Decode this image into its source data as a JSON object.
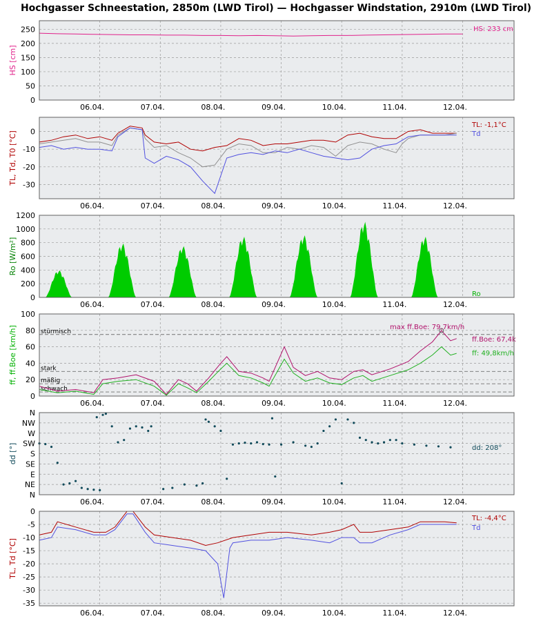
{
  "title": "Hochgasser Schneestation, 2850m (LWD Tirol) — Hochgasser Windstation, 2910m (LWD Tirol)",
  "chart_data": [
    {
      "type": "line",
      "ylabel": "HS [cm]",
      "ylim": [
        0,
        280
      ],
      "yticks": [
        0,
        50,
        100,
        150,
        200,
        250
      ],
      "xticks": [
        "06.04.",
        "07.04.",
        "08.04.",
        "09.04.",
        "10.04.",
        "11.04.",
        "12.04."
      ],
      "grid": true,
      "series": [
        {
          "name": "HS",
          "color": "#e0208a",
          "x": [
            0,
            0.3,
            0.6,
            0.9,
            1.2,
            1.5,
            1.8,
            2.1,
            2.4,
            2.7,
            3.0,
            3.3,
            3.6,
            3.9,
            4.2,
            4.5,
            4.8,
            5.1,
            5.4,
            5.7,
            6.0,
            6.3,
            6.7,
            7.0
          ],
          "y": [
            236,
            234,
            233,
            232,
            231,
            230,
            230,
            229,
            229,
            228,
            228,
            227,
            228,
            227,
            226,
            227,
            228,
            228,
            229,
            230,
            231,
            232,
            233,
            233
          ]
        }
      ],
      "annotations": [
        {
          "text": "HS: 233 cm",
          "color": "#e0208a"
        }
      ]
    },
    {
      "type": "line",
      "ylabel": "TL, Td, T0 [°C]",
      "ylim": [
        -38,
        8
      ],
      "yticks": [
        -30,
        -20,
        -10,
        0
      ],
      "xticks": [
        "06.04.",
        "07.04.",
        "08.04.",
        "09.04.",
        "10.04.",
        "11.04.",
        "12.04."
      ],
      "grid": true,
      "series": [
        {
          "name": "TL",
          "color": "#b00000",
          "x": [
            0,
            0.2,
            0.4,
            0.6,
            0.8,
            1.0,
            1.2,
            1.3,
            1.5,
            1.7,
            1.75,
            1.9,
            2.1,
            2.3,
            2.5,
            2.7,
            2.9,
            3.1,
            3.3,
            3.5,
            3.7,
            3.9,
            4.1,
            4.3,
            4.5,
            4.7,
            4.9,
            5.1,
            5.3,
            5.5,
            5.7,
            5.9,
            6.0,
            6.1,
            6.3,
            6.5,
            6.7,
            6.9
          ],
          "y": [
            -6,
            -5,
            -3,
            -2,
            -4,
            -3,
            -5,
            -1,
            3,
            2,
            -2,
            -6,
            -7,
            -6,
            -10,
            -11,
            -9,
            -8,
            -4,
            -5,
            -8,
            -7,
            -7,
            -6,
            -5,
            -5,
            -6,
            -2,
            -1,
            -3,
            -4,
            -4,
            -2,
            0,
            1,
            -1,
            -1,
            -1
          ]
        },
        {
          "name": "T0",
          "color": "#909090",
          "x": [
            0,
            0.2,
            0.4,
            0.6,
            0.8,
            1.0,
            1.2,
            1.3,
            1.5,
            1.7,
            1.75,
            1.9,
            2.1,
            2.3,
            2.5,
            2.7,
            2.9,
            3.1,
            3.3,
            3.5,
            3.7,
            3.9,
            4.1,
            4.3,
            4.5,
            4.7,
            4.9,
            5.1,
            5.3,
            5.5,
            5.7,
            5.9,
            6.0,
            6.1,
            6.3,
            6.5,
            6.7,
            6.9
          ],
          "y": [
            -7,
            -6,
            -5,
            -4,
            -6,
            -6,
            -8,
            -2,
            2,
            1,
            -4,
            -9,
            -8,
            -12,
            -15,
            -20,
            -19,
            -10,
            -7,
            -8,
            -12,
            -12,
            -9,
            -10,
            -8,
            -9,
            -14,
            -8,
            -6,
            -7,
            -10,
            -12,
            -7,
            -4,
            -2,
            -2,
            -2,
            -1
          ]
        },
        {
          "name": "Td",
          "color": "#5050e0",
          "x": [
            0,
            0.2,
            0.4,
            0.6,
            0.8,
            1.0,
            1.2,
            1.3,
            1.5,
            1.7,
            1.75,
            1.9,
            2.1,
            2.3,
            2.5,
            2.7,
            2.9,
            3.1,
            3.3,
            3.5,
            3.7,
            3.9,
            4.1,
            4.3,
            4.5,
            4.7,
            4.9,
            5.1,
            5.3,
            5.5,
            5.7,
            5.9,
            6.0,
            6.1,
            6.3,
            6.5,
            6.7,
            6.9
          ],
          "y": [
            -9,
            -8,
            -10,
            -9,
            -10,
            -10,
            -11,
            -3,
            2,
            1,
            -15,
            -18,
            -14,
            -16,
            -20,
            -28,
            -35,
            -15,
            -13,
            -12,
            -13,
            -11,
            -12,
            -10,
            -12,
            -14,
            -15,
            -16,
            -15,
            -10,
            -8,
            -7,
            -5,
            -3,
            -2,
            -2,
            -2,
            -2
          ]
        }
      ],
      "annotations": [
        {
          "text": "TL: -1,1°C",
          "color": "#b00000"
        },
        {
          "text": "Td",
          "color": "#5050e0"
        }
      ]
    },
    {
      "type": "area",
      "ylabel": "Ro [W/m²]",
      "ylim": [
        0,
        1200
      ],
      "yticks": [
        0,
        200,
        400,
        600,
        800,
        1000,
        1200
      ],
      "xticks": [
        "06.04.",
        "07.04.",
        "08.04.",
        "09.04.",
        "10.04.",
        "11.04.",
        "12.04."
      ],
      "grid": true,
      "series": [
        {
          "name": "Ro",
          "color": "#00cc00",
          "peaks": [
            {
              "center": 0.32,
              "half_width": 0.22,
              "value": 400
            },
            {
              "center": 1.37,
              "half_width": 0.23,
              "value": 800
            },
            {
              "center": 2.37,
              "half_width": 0.23,
              "value": 760
            },
            {
              "center": 3.37,
              "half_width": 0.23,
              "value": 900
            },
            {
              "center": 4.37,
              "half_width": 0.23,
              "value": 920
            },
            {
              "center": 5.37,
              "half_width": 0.23,
              "value": 1120
            },
            {
              "center": 6.37,
              "half_width": 0.22,
              "value": 900
            }
          ]
        }
      ],
      "annotations": [
        {
          "text": "Ro",
          "color": "#00b000"
        }
      ]
    },
    {
      "type": "line",
      "ylabel": "ff, ff.Boe [km/h]",
      "ylim": [
        0,
        100
      ],
      "yticks": [
        0,
        20,
        40,
        60,
        80,
        100
      ],
      "xticks": [
        "06.04.",
        "07.04.",
        "08.04.",
        "09.04.",
        "10.04.",
        "11.04.",
        "12.04."
      ],
      "grid": true,
      "thresholds": [
        {
          "label": "stürmisch",
          "value": 75
        },
        {
          "label": "stark",
          "value": 30
        },
        {
          "label": "mäßig",
          "value": 15
        },
        {
          "label": "schwach",
          "value": 5
        }
      ],
      "series": [
        {
          "name": "ff.Boe",
          "color": "#b0106a",
          "x": [
            0,
            0.3,
            0.6,
            0.9,
            1.05,
            1.3,
            1.6,
            1.9,
            2.1,
            2.3,
            2.45,
            2.6,
            2.8,
            3.0,
            3.1,
            3.3,
            3.5,
            3.7,
            3.8,
            4.05,
            4.2,
            4.4,
            4.6,
            4.8,
            5.0,
            5.2,
            5.35,
            5.5,
            5.8,
            6.1,
            6.3,
            6.5,
            6.65,
            6.8,
            6.9
          ],
          "y": [
            12,
            6,
            8,
            4,
            20,
            22,
            26,
            18,
            2,
            20,
            15,
            6,
            22,
            40,
            48,
            30,
            28,
            22,
            18,
            60,
            35,
            25,
            30,
            22,
            20,
            30,
            32,
            26,
            33,
            42,
            55,
            66,
            79.7,
            67.4,
            70
          ]
        },
        {
          "name": "ff",
          "color": "#20b020",
          "x": [
            0,
            0.3,
            0.6,
            0.9,
            1.05,
            1.3,
            1.6,
            1.9,
            2.1,
            2.3,
            2.45,
            2.6,
            2.8,
            3.0,
            3.1,
            3.3,
            3.5,
            3.7,
            3.8,
            4.05,
            4.2,
            4.4,
            4.6,
            4.8,
            5.0,
            5.2,
            5.35,
            5.5,
            5.8,
            6.1,
            6.3,
            6.5,
            6.65,
            6.8,
            6.9
          ],
          "y": [
            8,
            4,
            6,
            2,
            15,
            18,
            20,
            12,
            1,
            15,
            10,
            4,
            18,
            33,
            40,
            25,
            22,
            16,
            12,
            45,
            28,
            18,
            22,
            16,
            14,
            22,
            25,
            18,
            25,
            32,
            40,
            50,
            60,
            49.8,
            52
          ]
        }
      ],
      "annotations": [
        {
          "text": "max ff.Boe: 79,7km/h",
          "color": "#b0106a"
        },
        {
          "text": "ff.Boe: 67,4k",
          "color": "#b0106a"
        },
        {
          "text": "ff: 49,8km/h",
          "color": "#20b020"
        }
      ]
    },
    {
      "type": "scatter",
      "ylabel": "dd [°]",
      "ylim": [
        0,
        360
      ],
      "ycategories": [
        "N",
        "NE",
        "E",
        "SE",
        "S",
        "SW",
        "W",
        "NW",
        "N"
      ],
      "xticks": [
        "06.04.",
        "07.04.",
        "08.04.",
        "09.04.",
        "10.04.",
        "11.04.",
        "12.04."
      ],
      "grid": true,
      "series": [
        {
          "name": "dd",
          "color": "#104a5a",
          "x": [
            0.0,
            0.1,
            0.2,
            0.3,
            0.4,
            0.5,
            0.6,
            0.7,
            0.8,
            0.9,
            1.0,
            0.95,
            1.05,
            1.1,
            1.2,
            1.3,
            1.4,
            1.5,
            1.6,
            1.7,
            1.8,
            1.85,
            2.05,
            2.2,
            2.4,
            2.6,
            2.7,
            2.75,
            2.8,
            2.9,
            3.0,
            3.1,
            3.2,
            3.3,
            3.4,
            3.5,
            3.6,
            3.7,
            3.8,
            3.85,
            3.9,
            4.0,
            4.2,
            4.4,
            4.5,
            4.6,
            4.7,
            4.8,
            4.9,
            5.0,
            5.1,
            5.2,
            5.3,
            5.4,
            5.5,
            5.6,
            5.7,
            5.8,
            5.9,
            6.0,
            6.2,
            6.4,
            6.6,
            6.8
          ],
          "y": [
            225,
            222,
            210,
            140,
            45,
            50,
            60,
            30,
            25,
            22,
            20,
            340,
            350,
            355,
            300,
            230,
            240,
            290,
            300,
            295,
            280,
            300,
            25,
            30,
            45,
            40,
            50,
            330,
            320,
            300,
            280,
            70,
            220,
            225,
            228,
            225,
            230,
            222,
            220,
            335,
            80,
            220,
            230,
            215,
            210,
            225,
            280,
            300,
            330,
            50,
            330,
            315,
            250,
            240,
            230,
            225,
            230,
            240,
            240,
            225,
            220,
            215,
            212,
            208
          ]
        }
      ],
      "annotations": [
        {
          "text": "dd: 208°",
          "color": "#104a5a"
        }
      ]
    },
    {
      "type": "line",
      "ylabel": "TL, Td [°C]",
      "ylim": [
        -36,
        0
      ],
      "yticks": [
        -35,
        -30,
        -25,
        -20,
        -15,
        -10,
        -5,
        0
      ],
      "xticks": [
        "06.04.",
        "07.04.",
        "08.04.",
        "09.04.",
        "10.04.",
        "11.04.",
        "12.04."
      ],
      "grid": true,
      "series": [
        {
          "name": "TL",
          "color": "#b00000",
          "x": [
            0,
            0.2,
            0.3,
            0.6,
            0.9,
            1.1,
            1.25,
            1.45,
            1.55,
            1.75,
            1.9,
            2.2,
            2.5,
            2.75,
            2.95,
            3.2,
            3.5,
            3.8,
            4.1,
            4.5,
            4.8,
            5.0,
            5.2,
            5.3,
            5.5,
            5.8,
            6.1,
            6.3,
            6.5,
            6.7,
            6.9
          ],
          "y": [
            -9,
            -8,
            -4,
            -6,
            -8,
            -8,
            -6,
            0,
            0,
            -6,
            -9,
            -10,
            -11,
            -13,
            -12,
            -10,
            -9,
            -8,
            -8,
            -9,
            -8,
            -7,
            -5,
            -8,
            -8,
            -7,
            -6,
            -4,
            -4,
            -4,
            -4.4
          ]
        },
        {
          "name": "Td",
          "color": "#5050e0",
          "x": [
            0,
            0.2,
            0.3,
            0.6,
            0.9,
            1.1,
            1.25,
            1.45,
            1.55,
            1.75,
            1.9,
            2.2,
            2.5,
            2.75,
            2.95,
            3.05,
            3.15,
            3.2,
            3.5,
            3.8,
            4.1,
            4.5,
            4.8,
            5.0,
            5.2,
            5.3,
            5.5,
            5.8,
            6.1,
            6.3,
            6.5,
            6.7,
            6.9
          ],
          "y": [
            -11,
            -10,
            -6,
            -7,
            -9,
            -9,
            -7,
            -1,
            -1,
            -8,
            -12,
            -13,
            -14,
            -15,
            -20,
            -33,
            -14,
            -12,
            -11,
            -11,
            -10,
            -11,
            -12,
            -10,
            -10,
            -12,
            -12,
            -9,
            -7,
            -5,
            -5,
            -5,
            -5
          ]
        }
      ],
      "annotations": [
        {
          "text": "TL: -4,4°C",
          "color": "#b00000"
        },
        {
          "text": "Td",
          "color": "#5050e0"
        }
      ]
    }
  ]
}
